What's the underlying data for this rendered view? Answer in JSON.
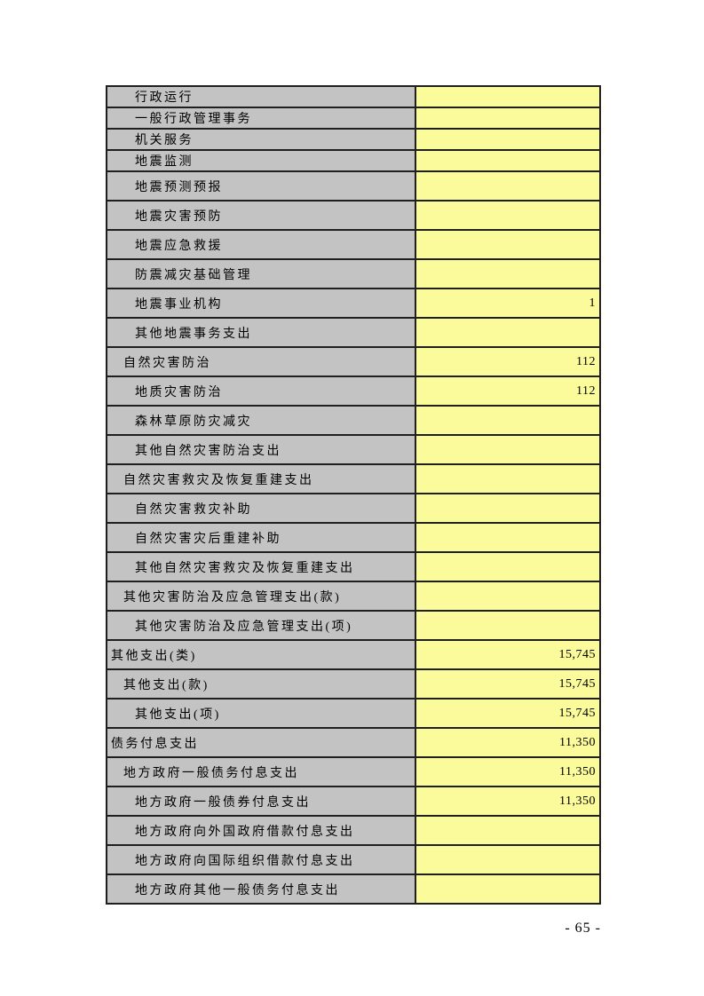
{
  "page": {
    "number_label": "- 65 -"
  },
  "colors": {
    "label_bg": "#c3c3c3",
    "value_bg": "#fbfb9b",
    "border": "#1f1f1f",
    "text": "#000000"
  },
  "table": {
    "rows": [
      {
        "label": "行政运行",
        "indent": 2,
        "value": ""
      },
      {
        "label": "一般行政管理事务",
        "indent": 2,
        "value": ""
      },
      {
        "label": "机关服务",
        "indent": 2,
        "value": ""
      },
      {
        "label": "地震监测",
        "indent": 2,
        "value": ""
      },
      {
        "label": "地震预测预报",
        "indent": 2,
        "value": ""
      },
      {
        "label": "地震灾害预防",
        "indent": 2,
        "value": ""
      },
      {
        "label": "地震应急救援",
        "indent": 2,
        "value": ""
      },
      {
        "label": "防震减灾基础管理",
        "indent": 2,
        "value": ""
      },
      {
        "label": "地震事业机构",
        "indent": 2,
        "value": "1"
      },
      {
        "label": "其他地震事务支出",
        "indent": 2,
        "value": ""
      },
      {
        "label": "自然灾害防治",
        "indent": 1,
        "value": "112"
      },
      {
        "label": "地质灾害防治",
        "indent": 2,
        "value": "112"
      },
      {
        "label": "森林草原防灾减灾",
        "indent": 2,
        "value": ""
      },
      {
        "label": "其他自然灾害防治支出",
        "indent": 2,
        "value": ""
      },
      {
        "label": "自然灾害救灾及恢复重建支出",
        "indent": 1,
        "value": ""
      },
      {
        "label": "自然灾害救灾补助",
        "indent": 2,
        "value": ""
      },
      {
        "label": "自然灾害灾后重建补助",
        "indent": 2,
        "value": ""
      },
      {
        "label": "其他自然灾害救灾及恢复重建支出",
        "indent": 2,
        "value": ""
      },
      {
        "label": "其他灾害防治及应急管理支出(款)",
        "indent": 1,
        "value": ""
      },
      {
        "label": "其他灾害防治及应急管理支出(项)",
        "indent": 2,
        "value": ""
      },
      {
        "label": "其他支出(类)",
        "indent": 0,
        "value": "15,745"
      },
      {
        "label": "其他支出(款)",
        "indent": 1,
        "value": "15,745"
      },
      {
        "label": "其他支出(项)",
        "indent": 2,
        "value": "15,745"
      },
      {
        "label": "债务付息支出",
        "indent": 0,
        "value": "11,350"
      },
      {
        "label": "地方政府一般债务付息支出",
        "indent": 1,
        "value": "11,350"
      },
      {
        "label": "地方政府一般债券付息支出",
        "indent": 2,
        "value": "11,350"
      },
      {
        "label": "地方政府向外国政府借款付息支出",
        "indent": 2,
        "value": ""
      },
      {
        "label": "地方政府向国际组织借款付息支出",
        "indent": 2,
        "value": ""
      },
      {
        "label": "地方政府其他一般债务付息支出",
        "indent": 2,
        "value": ""
      }
    ]
  }
}
